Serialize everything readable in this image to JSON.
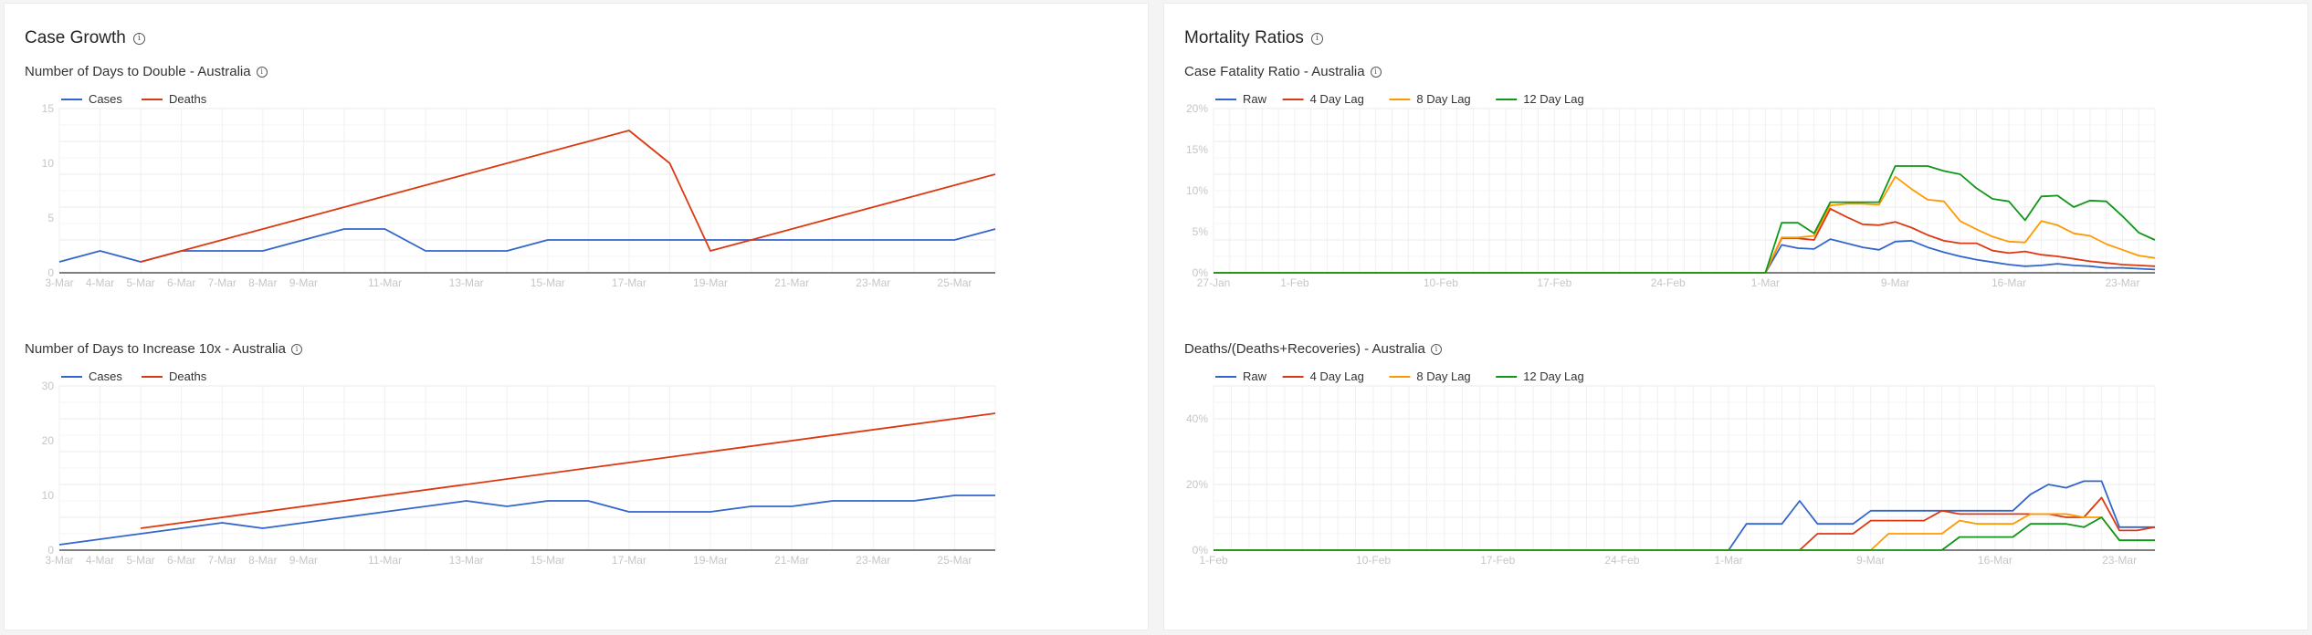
{
  "panels": {
    "left": {
      "title": "Case Growth"
    },
    "right": {
      "title": "Mortality Ratios"
    }
  },
  "chart_data": [
    {
      "id": "double",
      "type": "line",
      "title": "Number of Days to Double - Australia",
      "xlabel": "",
      "ylabel": "",
      "ylim": [
        0,
        15
      ],
      "yticks": [
        0,
        5,
        10,
        15
      ],
      "ytick_labels": [
        "0",
        "5",
        "10",
        "15"
      ],
      "x_labels": [
        "3-Mar",
        "4-Mar",
        "5-Mar",
        "6-Mar",
        "7-Mar",
        "8-Mar",
        "9-Mar",
        "11-Mar",
        "13-Mar",
        "15-Mar",
        "17-Mar",
        "19-Mar",
        "21-Mar",
        "23-Mar",
        "25-Mar"
      ],
      "x_label_idx": [
        0,
        1,
        2,
        3,
        4,
        5,
        6,
        8,
        10,
        12,
        14,
        16,
        18,
        20,
        22
      ],
      "x_count": 24,
      "grid": true,
      "legend_position": "top-left",
      "series": [
        {
          "name": "Cases",
          "color": "#3366cc",
          "x": [
            0,
            1,
            2,
            3,
            4,
            5,
            6,
            7,
            8,
            9,
            10,
            11,
            12,
            13,
            14,
            15,
            16,
            17,
            18,
            19,
            20,
            21,
            22,
            23
          ],
          "values": [
            1,
            2,
            1,
            2,
            2,
            2,
            3,
            4,
            4,
            2,
            2,
            2,
            3,
            3,
            3,
            3,
            3,
            3,
            3,
            3,
            3,
            3,
            3,
            4
          ]
        },
        {
          "name": "Deaths",
          "color": "#dc3912",
          "x": [
            2,
            14,
            15,
            16,
            23
          ],
          "values": [
            1,
            13,
            10,
            2,
            9
          ]
        }
      ]
    },
    {
      "id": "tenx",
      "type": "line",
      "title": "Number of Days to Increase 10x - Australia",
      "xlabel": "",
      "ylabel": "",
      "ylim": [
        0,
        30
      ],
      "yticks": [
        0,
        10,
        20,
        30
      ],
      "ytick_labels": [
        "0",
        "10",
        "20",
        "30"
      ],
      "x_labels": [
        "3-Mar",
        "4-Mar",
        "5-Mar",
        "6-Mar",
        "7-Mar",
        "8-Mar",
        "9-Mar",
        "11-Mar",
        "13-Mar",
        "15-Mar",
        "17-Mar",
        "19-Mar",
        "21-Mar",
        "23-Mar",
        "25-Mar"
      ],
      "x_label_idx": [
        0,
        1,
        2,
        3,
        4,
        5,
        6,
        8,
        10,
        12,
        14,
        16,
        18,
        20,
        22
      ],
      "x_count": 24,
      "grid": true,
      "legend_position": "top-left",
      "series": [
        {
          "name": "Cases",
          "color": "#3366cc",
          "x": [
            0,
            1,
            2,
            3,
            4,
            5,
            6,
            7,
            8,
            9,
            10,
            11,
            12,
            13,
            14,
            15,
            16,
            17,
            18,
            19,
            20,
            21,
            22,
            23
          ],
          "values": [
            1,
            2,
            3,
            4,
            5,
            4,
            5,
            6,
            7,
            8,
            9,
            8,
            9,
            9,
            7,
            7,
            7,
            8,
            8,
            9,
            9,
            9,
            10,
            10
          ]
        },
        {
          "name": "Deaths",
          "color": "#dc3912",
          "x": [
            2,
            23
          ],
          "values": [
            4,
            25
          ]
        }
      ]
    },
    {
      "id": "cfr",
      "type": "line",
      "title": "Case Fatality Ratio - Australia",
      "xlabel": "",
      "ylabel": "",
      "ylim": [
        0,
        20
      ],
      "yticks": [
        0,
        5,
        10,
        15,
        20
      ],
      "ytick_labels": [
        "0%",
        "5%",
        "10%",
        "15%",
        "20%"
      ],
      "x_labels": [
        "27-Jan",
        "1-Feb",
        "10-Feb",
        "17-Feb",
        "24-Feb",
        "1-Mar",
        "9-Mar",
        "16-Mar",
        "23-Mar"
      ],
      "x_label_idx": [
        0,
        5,
        14,
        21,
        28,
        34,
        42,
        49,
        56
      ],
      "x_count": 59,
      "grid": true,
      "legend_position": "top-left",
      "series": [
        {
          "name": "Raw",
          "color": "#3366cc",
          "x": [
            0,
            34,
            35,
            36,
            37,
            38,
            39,
            40,
            41,
            42,
            43,
            44,
            45,
            46,
            47,
            48,
            49,
            50,
            51,
            52,
            53,
            54,
            55,
            56,
            57,
            58
          ],
          "values": [
            0,
            0,
            3.4,
            3.0,
            2.9,
            4.1,
            3.6,
            3.1,
            2.8,
            3.8,
            3.9,
            3.1,
            2.5,
            2.0,
            1.6,
            1.3,
            1.0,
            0.8,
            0.9,
            1.1,
            0.9,
            0.8,
            0.6,
            0.6,
            0.5,
            0.4
          ]
        },
        {
          "name": "4 Day Lag",
          "color": "#dc3912",
          "x": [
            0,
            34,
            35,
            36,
            37,
            38,
            39,
            40,
            41,
            42,
            43,
            44,
            45,
            46,
            47,
            48,
            49,
            50,
            51,
            52,
            53,
            54,
            55,
            56,
            57,
            58
          ],
          "values": [
            0,
            0,
            4.2,
            4.2,
            4.0,
            7.8,
            6.8,
            5.9,
            5.8,
            6.2,
            5.5,
            4.6,
            3.9,
            3.6,
            3.6,
            2.7,
            2.4,
            2.6,
            2.2,
            2.0,
            1.7,
            1.4,
            1.2,
            1.0,
            0.9,
            0.8
          ]
        },
        {
          "name": "8 Day Lag",
          "color": "#ff9900",
          "x": [
            0,
            34,
            35,
            36,
            37,
            38,
            39,
            40,
            41,
            42,
            43,
            44,
            45,
            46,
            47,
            48,
            49,
            50,
            51,
            52,
            53,
            54,
            55,
            56,
            57,
            58
          ],
          "values": [
            0,
            0,
            4.3,
            4.3,
            4.5,
            8.2,
            8.4,
            8.4,
            8.3,
            11.7,
            10.2,
            8.9,
            8.7,
            6.3,
            5.3,
            4.4,
            3.8,
            3.7,
            6.3,
            5.8,
            4.8,
            4.5,
            3.5,
            2.8,
            2.1,
            1.8
          ]
        },
        {
          "name": "12 Day Lag",
          "color": "#109618",
          "x": [
            0,
            34,
            35,
            36,
            37,
            38,
            39,
            40,
            41,
            42,
            43,
            44,
            45,
            46,
            47,
            48,
            49,
            50,
            51,
            52,
            53,
            54,
            55,
            56,
            57,
            58
          ],
          "values": [
            0,
            0,
            6.1,
            6.1,
            4.8,
            8.6,
            8.6,
            8.6,
            8.6,
            13.0,
            13.0,
            13.0,
            12.4,
            12.0,
            10.3,
            9.0,
            8.7,
            6.4,
            9.3,
            9.4,
            8.0,
            8.8,
            8.7,
            6.9,
            4.9,
            4.0
          ]
        }
      ]
    },
    {
      "id": "ddr",
      "type": "line",
      "title": "Deaths/(Deaths+Recoveries) - Australia",
      "xlabel": "",
      "ylabel": "",
      "ylim": [
        0,
        50
      ],
      "yticks": [
        0,
        20,
        40
      ],
      "ytick_labels": [
        "0%",
        "20%",
        "40%"
      ],
      "x_labels": [
        "1-Feb",
        "10-Feb",
        "17-Feb",
        "24-Feb",
        "1-Mar",
        "9-Mar",
        "16-Mar",
        "23-Mar"
      ],
      "x_label_idx": [
        0,
        9,
        16,
        23,
        29,
        37,
        44,
        51
      ],
      "x_count": 54,
      "grid": true,
      "legend_position": "top-left",
      "series": [
        {
          "name": "Raw",
          "color": "#3366cc",
          "x": [
            0,
            29,
            30,
            31,
            32,
            33,
            34,
            35,
            36,
            37,
            38,
            39,
            40,
            41,
            42,
            43,
            44,
            45,
            46,
            47,
            48,
            49,
            50,
            51,
            52,
            53
          ],
          "values": [
            0,
            0,
            8,
            8,
            8,
            15,
            8,
            8,
            8,
            12,
            12,
            12,
            12,
            12,
            12,
            12,
            12,
            12,
            17,
            20,
            19,
            21,
            21,
            7,
            7,
            7
          ]
        },
        {
          "name": "4 Day Lag",
          "color": "#dc3912",
          "x": [
            0,
            33,
            34,
            35,
            36,
            37,
            38,
            39,
            40,
            41,
            42,
            43,
            44,
            45,
            46,
            47,
            48,
            49,
            50,
            51,
            52,
            53
          ],
          "values": [
            0,
            0,
            5,
            5,
            5,
            9,
            9,
            9,
            9,
            12,
            11,
            11,
            11,
            11,
            11,
            11,
            10,
            10,
            16,
            6,
            6,
            7
          ]
        },
        {
          "name": "8 Day Lag",
          "color": "#ff9900",
          "x": [
            0,
            37,
            38,
            39,
            40,
            41,
            42,
            43,
            44,
            45,
            46,
            47,
            48,
            49,
            50,
            51,
            52,
            53
          ],
          "values": [
            0,
            0,
            5,
            5,
            5,
            5,
            9,
            8,
            8,
            8,
            11,
            11,
            11,
            10,
            10,
            3,
            3,
            3
          ]
        },
        {
          "name": "12 Day Lag",
          "color": "#109618",
          "x": [
            0,
            41,
            42,
            43,
            44,
            45,
            46,
            47,
            48,
            49,
            50,
            51,
            52,
            53
          ],
          "values": [
            0,
            0,
            4,
            4,
            4,
            4,
            8,
            8,
            8,
            7,
            10,
            3,
            3,
            3
          ]
        }
      ]
    }
  ]
}
